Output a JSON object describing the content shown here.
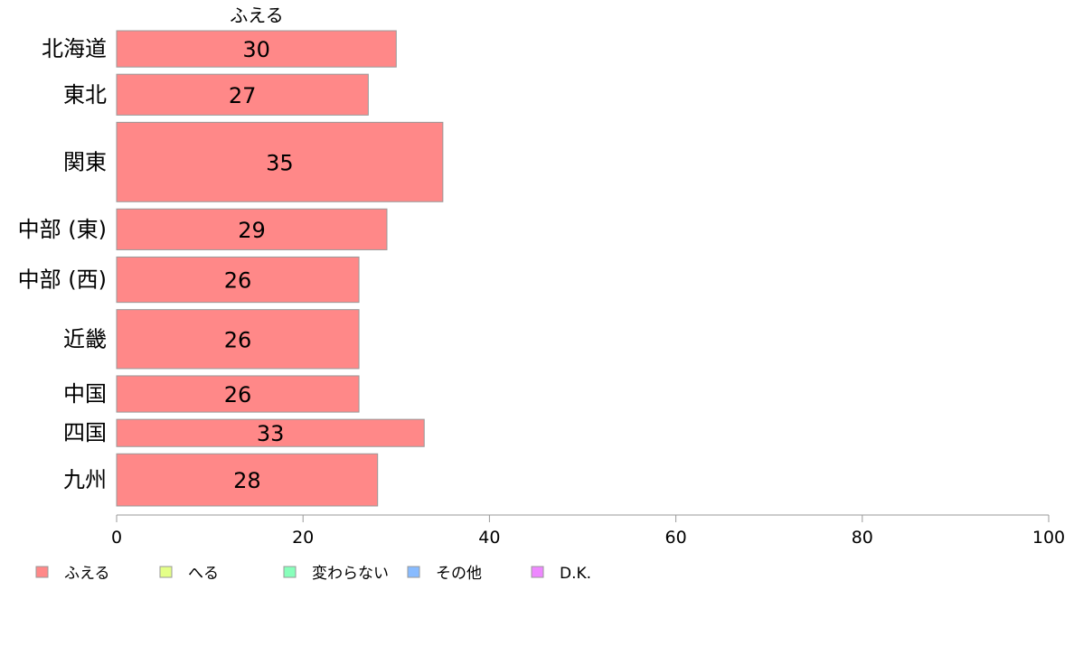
{
  "chart_data": {
    "type": "bar",
    "orientation": "horizontal",
    "categories": [
      "北海道",
      "東北",
      "関東",
      "中部 (東)",
      "中部 (西)",
      "近畿",
      "中国",
      "四国",
      "九州"
    ],
    "category_weights": [
      0.8,
      0.9,
      1.75,
      0.9,
      1.0,
      1.3,
      0.8,
      0.6,
      1.15
    ],
    "series": [
      {
        "name": "ふえる",
        "color": "#ff8888",
        "values": [
          30,
          27,
          35,
          29,
          26,
          26,
          26,
          33,
          28
        ],
        "value_labels": [
          "30",
          "27",
          "35",
          "29",
          "26",
          "26",
          "26",
          "33",
          "28"
        ]
      }
    ],
    "series_title": "ふえる",
    "xlim": [
      0,
      100
    ],
    "xticks": [
      "0",
      "20",
      "40",
      "60",
      "80",
      "100"
    ],
    "grid": false,
    "legend_position": "bottom-left",
    "legend": [
      {
        "label": "ふえる",
        "color": "#ff8888"
      },
      {
        "label": "へる",
        "color": "#e4ff88"
      },
      {
        "label": "変わらない",
        "color": "#88ffbb"
      },
      {
        "label": "その他",
        "color": "#88bbff"
      },
      {
        "label": "D.K.",
        "color": "#ee88ff"
      }
    ]
  }
}
